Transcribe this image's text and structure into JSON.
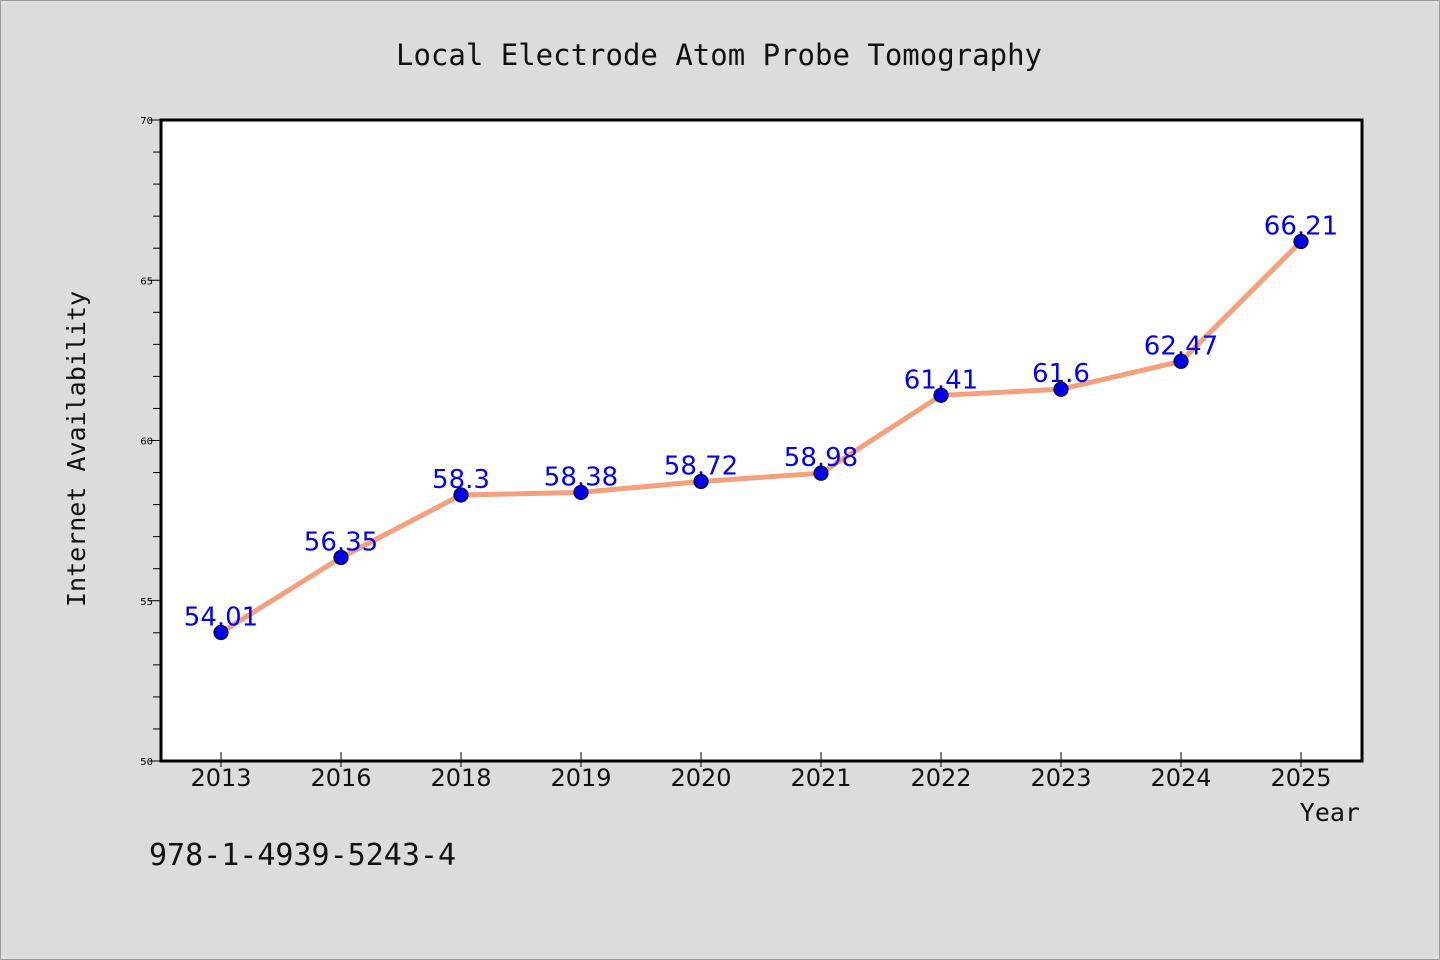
{
  "chart_data": {
    "type": "line",
    "title": "Local Electrode Atom Probe Tomography",
    "xlabel": "Year",
    "ylabel": "Internet Availability",
    "categories": [
      "2013",
      "2016",
      "2018",
      "2019",
      "2020",
      "2021",
      "2022",
      "2023",
      "2024",
      "2025"
    ],
    "series": [
      {
        "values": [
          54.01,
          56.35,
          58.3,
          58.38,
          58.72,
          58.98,
          61.41,
          61.6,
          62.47,
          66.21
        ],
        "labels": [
          "54.01",
          "56.35",
          "58.3",
          "58.38",
          "58.72",
          "58.98",
          "61.41",
          "61.6",
          "62.47",
          "66.21"
        ],
        "line_color": "#f4a07c",
        "marker_color": "#0000ee"
      }
    ],
    "ylim": [
      50,
      70
    ],
    "yticks": [
      50,
      55,
      60,
      65,
      70
    ],
    "grid": false,
    "legend": "none"
  },
  "annotation": {
    "text": "978-1-4939-5243-4"
  },
  "colors": {
    "background": "#dcdcdc",
    "plot_area": "#ffffff",
    "axes": "#000000"
  }
}
